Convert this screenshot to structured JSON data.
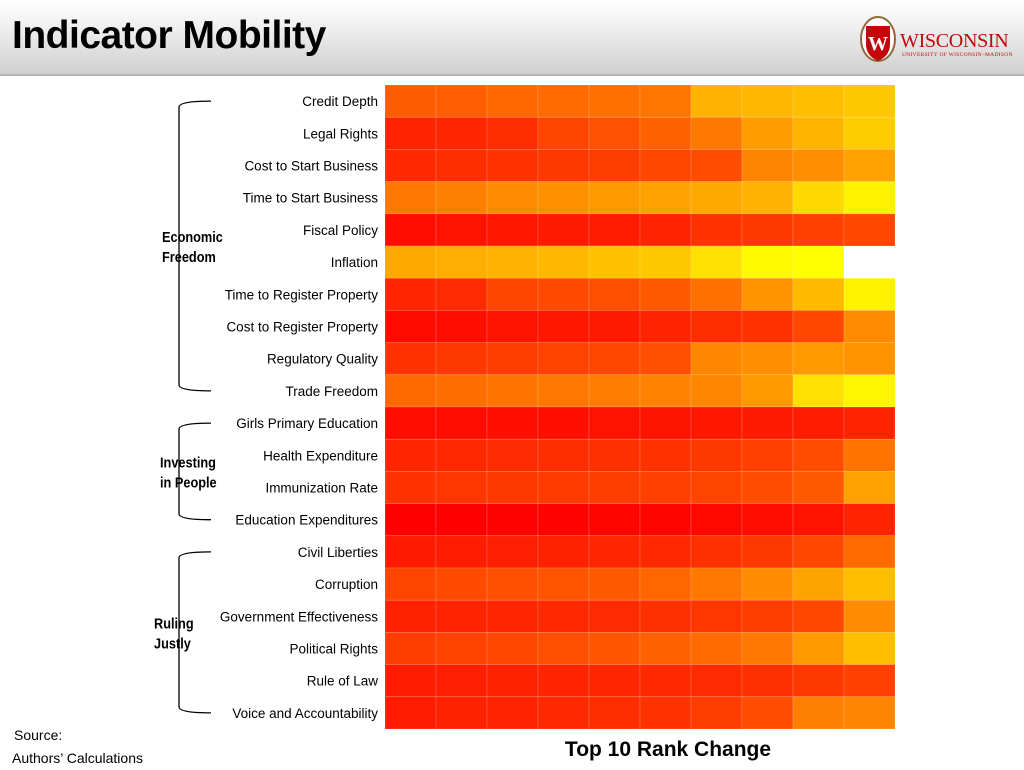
{
  "slide": {
    "title": "Indicator Mobility",
    "logo_text": "WISCONSIN",
    "logo_subtext": "UNIVERSITY OF WISCONSIN–MADISON",
    "source_label": "Source:",
    "source_text": "Authors’ Calculations"
  },
  "chart_data": {
    "type": "heatmap",
    "xlabel": "Top 10 Rank Change",
    "rows": [
      "Credit Depth",
      "Legal Rights",
      "Cost to Start Business",
      "Time to Start Business",
      "Fiscal Policy",
      "Inflation",
      "Time to Register Property",
      "Cost to Register Property",
      "Regulatory Quality",
      "Trade Freedom",
      "Girls Primary Education",
      "Health Expenditure",
      "Immunization Rate",
      "Education Expenditures",
      "Civil  Liberties",
      "Corruption",
      "Government Effectiveness",
      "Political Rights",
      "Rule of Law",
      "Voice and Accountability"
    ],
    "groups": [
      {
        "name": [
          "Economic",
          "Freedom"
        ],
        "rows": [
          0,
          9
        ]
      },
      {
        "name": [
          "Investing",
          "in People"
        ],
        "rows": [
          10,
          13
        ]
      },
      {
        "name": [
          "Ruling",
          "Justly"
        ],
        "rows": [
          14,
          19
        ]
      }
    ],
    "columns": 10,
    "color_scale": [
      "#ff0000",
      "#ffff00"
    ],
    "values": [
      [
        0.36,
        0.37,
        0.4,
        0.42,
        0.44,
        0.46,
        0.7,
        0.72,
        0.75,
        0.78
      ],
      [
        0.14,
        0.15,
        0.18,
        0.27,
        0.32,
        0.38,
        0.47,
        0.61,
        0.71,
        0.8
      ],
      [
        0.16,
        0.18,
        0.2,
        0.22,
        0.24,
        0.28,
        0.3,
        0.52,
        0.56,
        0.63
      ],
      [
        0.47,
        0.5,
        0.54,
        0.57,
        0.6,
        0.63,
        0.66,
        0.7,
        0.85,
        0.95
      ],
      [
        0.05,
        0.07,
        0.09,
        0.1,
        0.11,
        0.14,
        0.2,
        0.22,
        0.25,
        0.28
      ],
      [
        0.66,
        0.68,
        0.7,
        0.72,
        0.76,
        0.78,
        0.88,
        0.98,
        1.0,
        null
      ],
      [
        0.15,
        0.17,
        0.27,
        0.29,
        0.31,
        0.35,
        0.44,
        0.58,
        0.73,
        0.95
      ],
      [
        0.04,
        0.05,
        0.07,
        0.09,
        0.1,
        0.14,
        0.18,
        0.2,
        0.28,
        0.55
      ],
      [
        0.2,
        0.22,
        0.24,
        0.26,
        0.28,
        0.31,
        0.53,
        0.56,
        0.6,
        0.58
      ],
      [
        0.41,
        0.43,
        0.45,
        0.47,
        0.49,
        0.51,
        0.53,
        0.6,
        0.88,
        0.96
      ],
      [
        0.05,
        0.05,
        0.06,
        0.06,
        0.07,
        0.08,
        0.09,
        0.1,
        0.11,
        0.14
      ],
      [
        0.15,
        0.16,
        0.17,
        0.18,
        0.19,
        0.2,
        0.22,
        0.25,
        0.3,
        0.45
      ],
      [
        0.2,
        0.21,
        0.22,
        0.23,
        0.24,
        0.25,
        0.27,
        0.3,
        0.35,
        0.63
      ],
      [
        0.0,
        0.0,
        0.01,
        0.01,
        0.02,
        0.02,
        0.03,
        0.05,
        0.07,
        0.14
      ],
      [
        0.1,
        0.11,
        0.12,
        0.13,
        0.15,
        0.16,
        0.19,
        0.22,
        0.28,
        0.42
      ],
      [
        0.27,
        0.29,
        0.31,
        0.33,
        0.35,
        0.4,
        0.47,
        0.55,
        0.64,
        0.74
      ],
      [
        0.13,
        0.14,
        0.15,
        0.16,
        0.17,
        0.19,
        0.21,
        0.24,
        0.28,
        0.55
      ],
      [
        0.24,
        0.26,
        0.28,
        0.31,
        0.34,
        0.38,
        0.42,
        0.47,
        0.6,
        0.75
      ],
      [
        0.11,
        0.12,
        0.13,
        0.14,
        0.15,
        0.16,
        0.17,
        0.19,
        0.22,
        0.25
      ],
      [
        0.11,
        0.13,
        0.14,
        0.16,
        0.18,
        0.2,
        0.24,
        0.3,
        0.5,
        0.52
      ]
    ]
  }
}
